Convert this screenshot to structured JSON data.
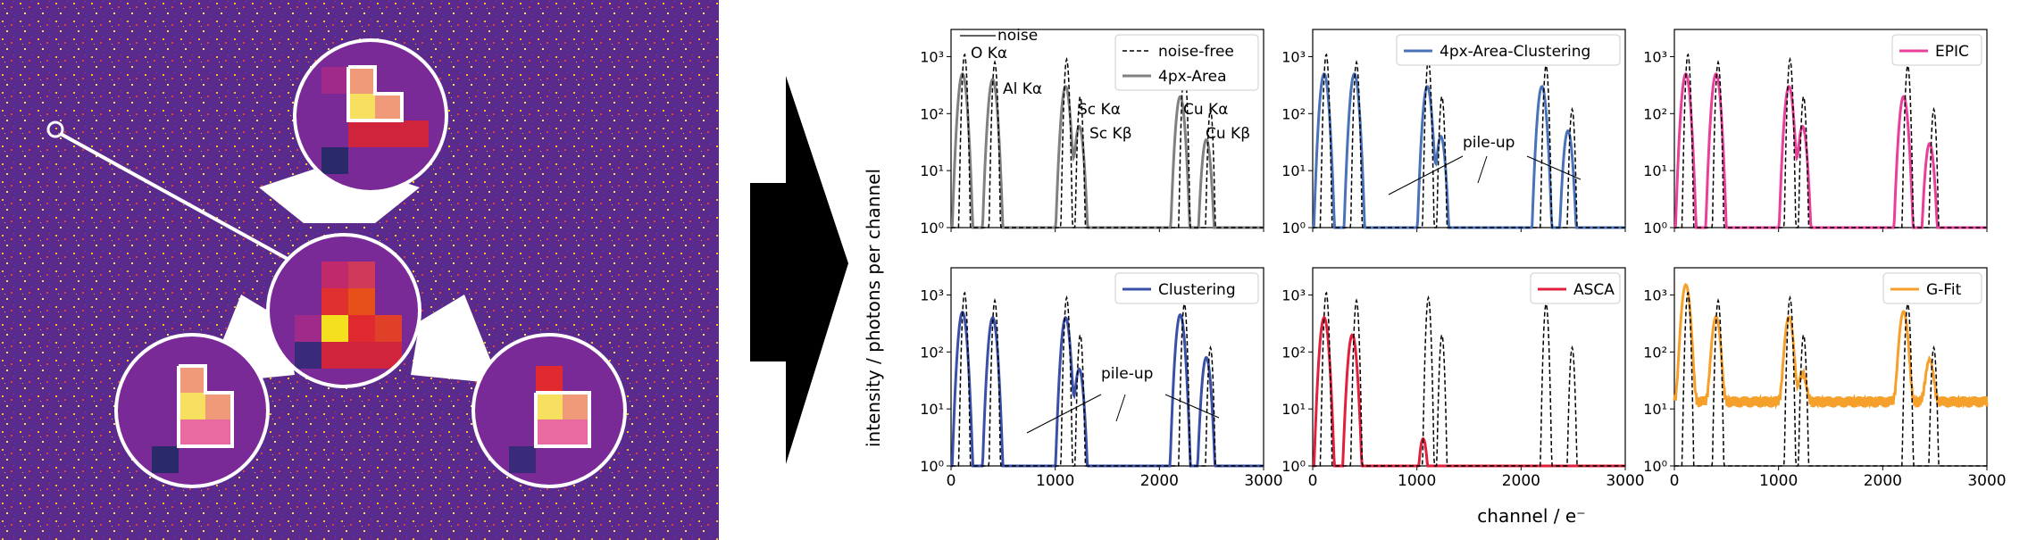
{
  "colors": {
    "bg_purple": "#5a2a8c",
    "noise_free": "#000000",
    "area4px": "#808080",
    "area_clustering": "#4a72b8",
    "epic": "#e8409a",
    "clustering": "#3a50a8",
    "asca": "#e0203c",
    "gfit": "#f5a02a",
    "arrow": "#000000"
  },
  "figure": {
    "ylabel": "intensity / photons per channel",
    "xlabel": "channel / e⁻",
    "xticks": [
      "0",
      "1000",
      "2000",
      "3000"
    ],
    "yticks": [
      "10⁰",
      "10¹",
      "10²",
      "10³"
    ],
    "annotations": {
      "noise": "noise",
      "o_ka": "O Kα",
      "al_ka": "Al Kα",
      "sc_ka": "Sc Kα",
      "sc_kb": "Sc Kβ",
      "cu_ka": "Cu Kα",
      "cu_kb": "Cu Kβ",
      "pileup": "pile-up"
    }
  },
  "chart_data": [
    {
      "type": "line",
      "panel": "top-left",
      "legend": [
        "noise-free",
        "4px-Area"
      ],
      "legend_placement": "top-right",
      "xlim": [
        0,
        3000
      ],
      "ylim": [
        1,
        3000
      ],
      "yscale": "log",
      "series": [
        {
          "name": "noise-free",
          "peaks": [
            [
              130,
              1100
            ],
            [
              420,
              800
            ],
            [
              1110,
              900
            ],
            [
              1240,
              200
            ],
            [
              2240,
              700
            ],
            [
              2490,
              120
            ]
          ]
        },
        {
          "name": "4px-Area",
          "peaks": [
            [
              110,
              500
            ],
            [
              400,
              400
            ],
            [
              1100,
              300
            ],
            [
              1230,
              60
            ],
            [
              2200,
              200
            ],
            [
              2450,
              35
            ]
          ]
        }
      ]
    },
    {
      "type": "line",
      "panel": "top-middle",
      "legend": [
        "4px-Area-Clustering"
      ],
      "legend_placement": "top-right",
      "xlim": [
        0,
        3000
      ],
      "ylim": [
        1,
        3000
      ],
      "yscale": "log",
      "series": [
        {
          "name": "4px-Area-Clustering",
          "peaks": [
            [
              110,
              500
            ],
            [
              400,
              500
            ],
            [
              1100,
              300
            ],
            [
              1230,
              40
            ],
            [
              2200,
              300
            ],
            [
              2450,
              50
            ]
          ]
        }
      ]
    },
    {
      "type": "line",
      "panel": "top-right",
      "legend": [
        "EPIC"
      ],
      "legend_placement": "top-right",
      "xlim": [
        0,
        3000
      ],
      "ylim": [
        1,
        3000
      ],
      "yscale": "log",
      "series": [
        {
          "name": "EPIC",
          "peaks": [
            [
              110,
              500
            ],
            [
              400,
              500
            ],
            [
              1100,
              300
            ],
            [
              1230,
              60
            ],
            [
              2200,
              200
            ],
            [
              2450,
              30
            ]
          ]
        }
      ]
    },
    {
      "type": "line",
      "panel": "bottom-left",
      "legend": [
        "Clustering"
      ],
      "legend_placement": "top-right",
      "xlim": [
        0,
        3000
      ],
      "ylim": [
        1,
        3000
      ],
      "yscale": "log",
      "series": [
        {
          "name": "Clustering",
          "peaks": [
            [
              110,
              500
            ],
            [
              400,
              400
            ],
            [
              1100,
              400
            ],
            [
              1230,
              50
            ],
            [
              2200,
              450
            ],
            [
              2450,
              80
            ]
          ]
        }
      ]
    },
    {
      "type": "line",
      "panel": "bottom-middle",
      "legend": [
        "ASCA"
      ],
      "legend_placement": "top-right",
      "xlim": [
        0,
        3000
      ],
      "ylim": [
        1,
        3000
      ],
      "yscale": "log",
      "series": [
        {
          "name": "ASCA",
          "peaks": [
            [
              110,
              400
            ],
            [
              380,
              200
            ],
            [
              1060,
              3
            ]
          ]
        }
      ]
    },
    {
      "type": "line",
      "panel": "bottom-right",
      "legend": [
        "G-Fit"
      ],
      "legend_placement": "top-right",
      "xlim": [
        0,
        3000
      ],
      "ylim": [
        1,
        3000
      ],
      "yscale": "log",
      "series": [
        {
          "name": "G-Fit",
          "peaks": [
            [
              110,
              1500
            ],
            [
              400,
              400
            ],
            [
              1100,
              400
            ],
            [
              1230,
              30
            ],
            [
              2200,
              500
            ],
            [
              2450,
              60
            ]
          ],
          "baseline": 10
        }
      ]
    }
  ]
}
